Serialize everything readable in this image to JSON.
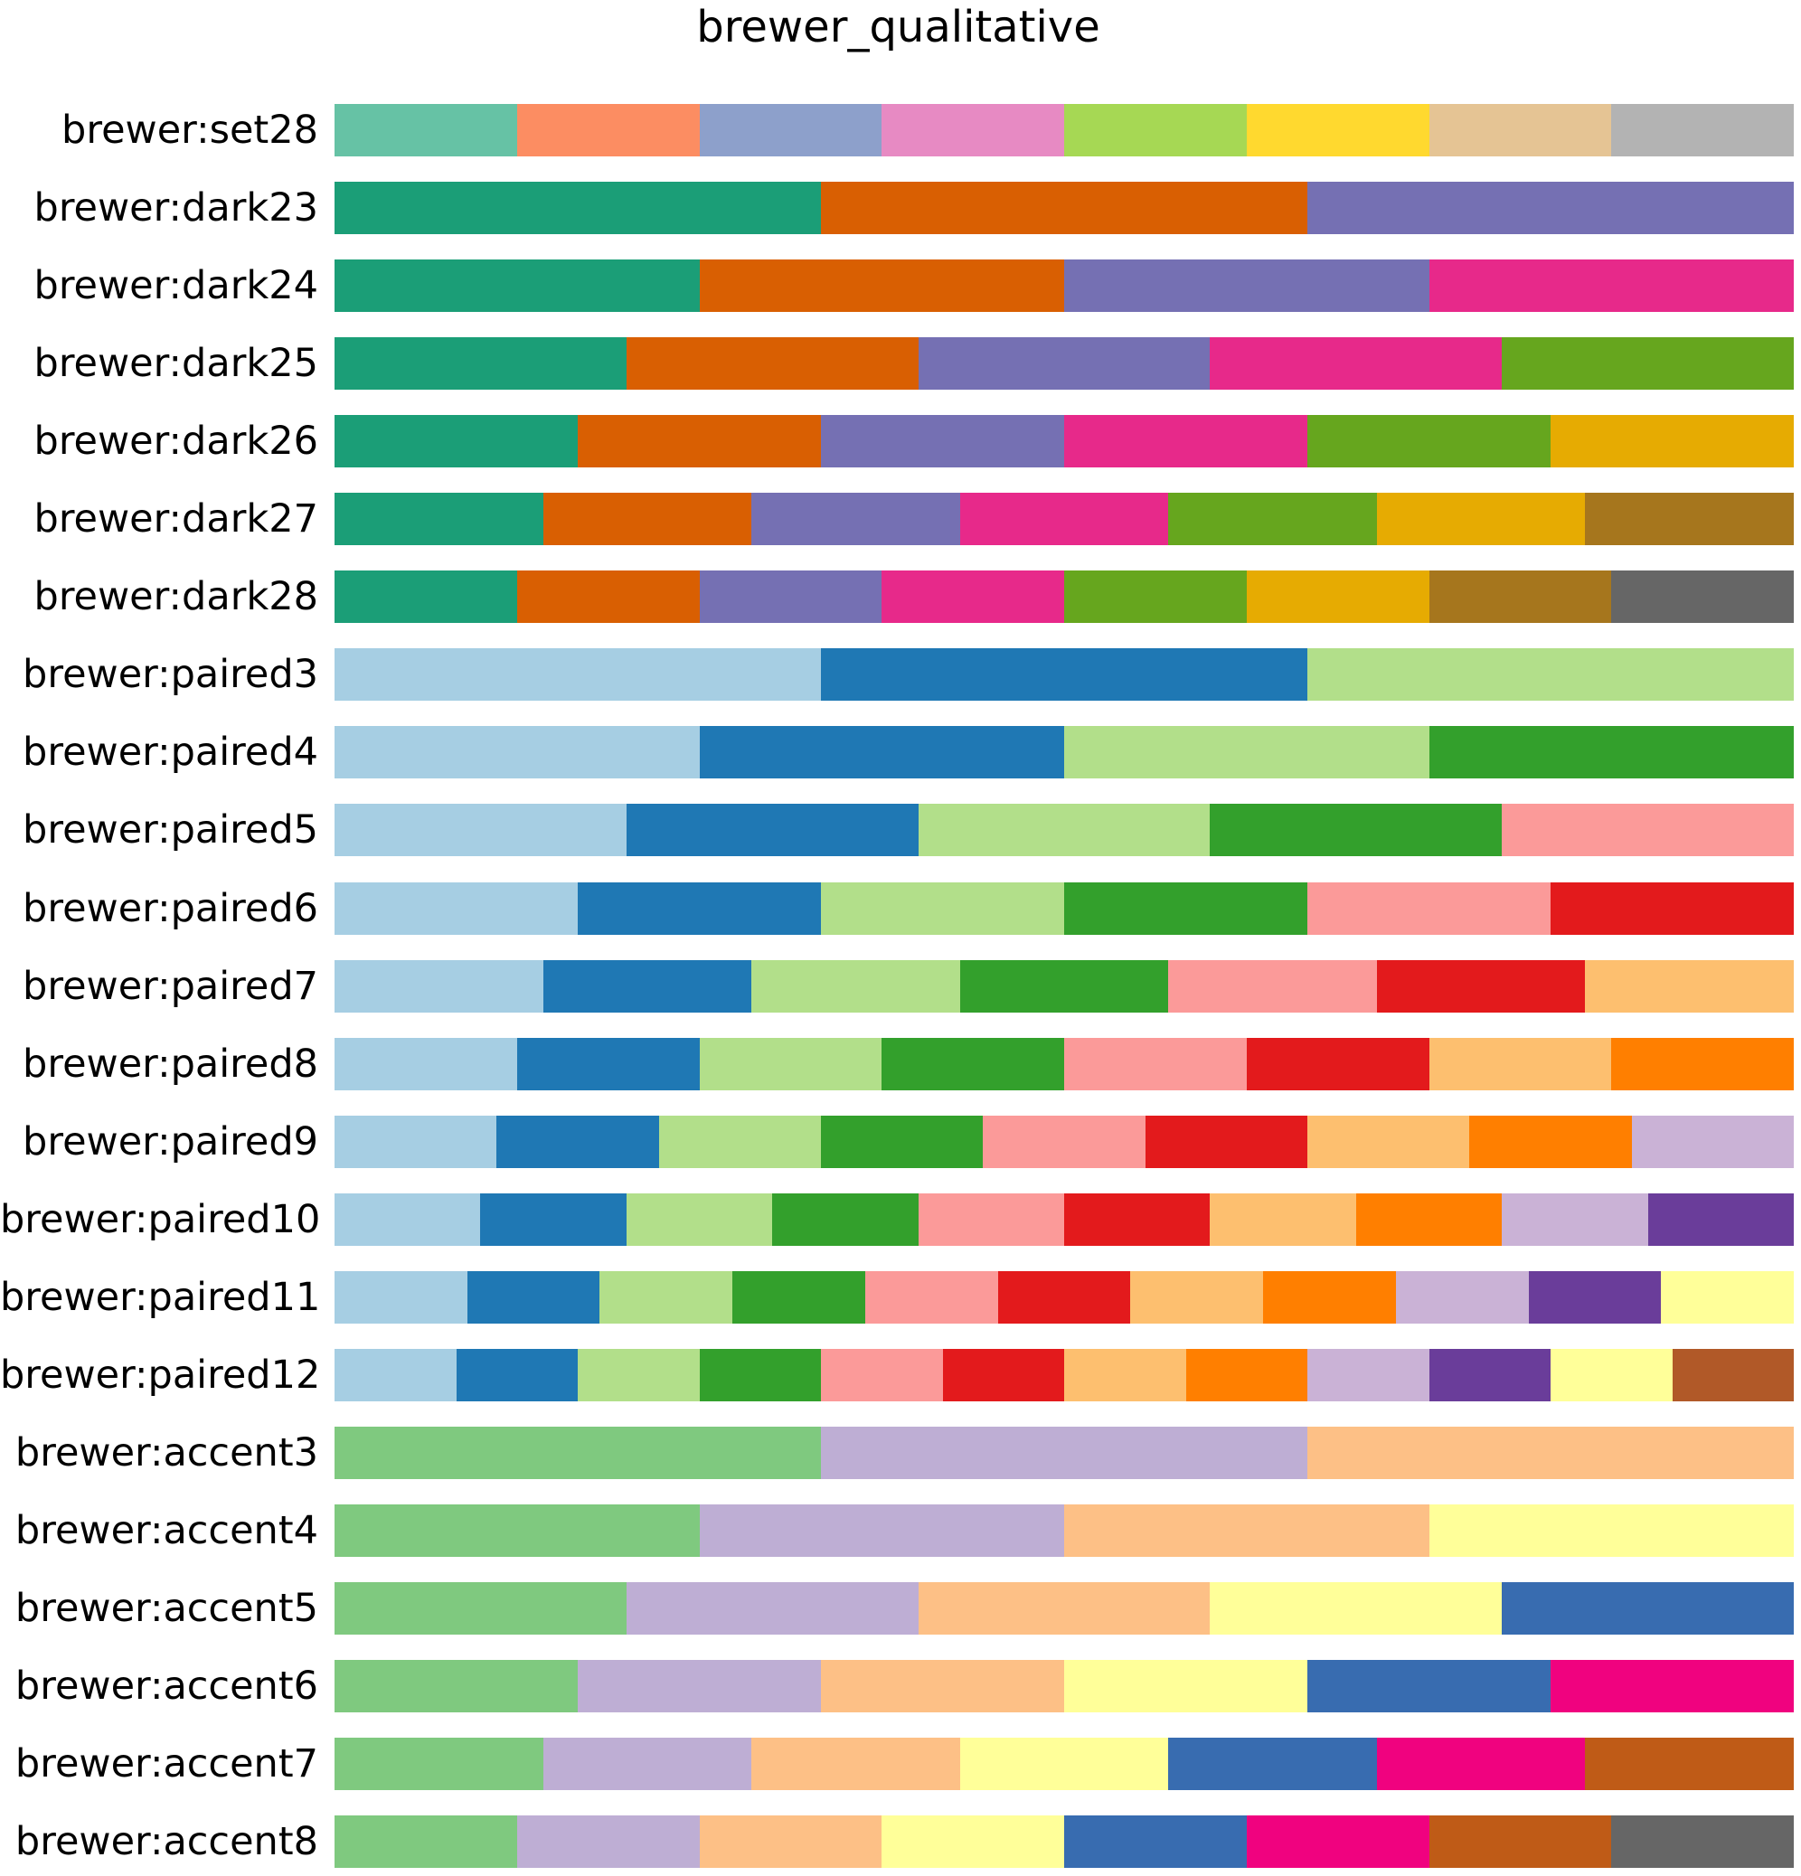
{
  "chart_data": {
    "type": "heatmap",
    "title": "brewer_qualitative",
    "xlabel": "",
    "ylabel": "",
    "grid": false,
    "palettes": [
      {
        "name": "brewer:set28",
        "colors": [
          "#66c2a5",
          "#fc8d62",
          "#8da0cb",
          "#e78ac3",
          "#a6d854",
          "#ffd92f",
          "#e5c494",
          "#b3b3b3"
        ]
      },
      {
        "name": "brewer:dark23",
        "colors": [
          "#1b9e77",
          "#d95f02",
          "#7570b3"
        ]
      },
      {
        "name": "brewer:dark24",
        "colors": [
          "#1b9e77",
          "#d95f02",
          "#7570b3",
          "#e7298a"
        ]
      },
      {
        "name": "brewer:dark25",
        "colors": [
          "#1b9e77",
          "#d95f02",
          "#7570b3",
          "#e7298a",
          "#66a61e"
        ]
      },
      {
        "name": "brewer:dark26",
        "colors": [
          "#1b9e77",
          "#d95f02",
          "#7570b3",
          "#e7298a",
          "#66a61e",
          "#e6ab02"
        ]
      },
      {
        "name": "brewer:dark27",
        "colors": [
          "#1b9e77",
          "#d95f02",
          "#7570b3",
          "#e7298a",
          "#66a61e",
          "#e6ab02",
          "#a6761d"
        ]
      },
      {
        "name": "brewer:dark28",
        "colors": [
          "#1b9e77",
          "#d95f02",
          "#7570b3",
          "#e7298a",
          "#66a61e",
          "#e6ab02",
          "#a6761d",
          "#666666"
        ]
      },
      {
        "name": "brewer:paired3",
        "colors": [
          "#a6cee3",
          "#1f78b4",
          "#b2df8a"
        ]
      },
      {
        "name": "brewer:paired4",
        "colors": [
          "#a6cee3",
          "#1f78b4",
          "#b2df8a",
          "#33a02c"
        ]
      },
      {
        "name": "brewer:paired5",
        "colors": [
          "#a6cee3",
          "#1f78b4",
          "#b2df8a",
          "#33a02c",
          "#fb9a99"
        ]
      },
      {
        "name": "brewer:paired6",
        "colors": [
          "#a6cee3",
          "#1f78b4",
          "#b2df8a",
          "#33a02c",
          "#fb9a99",
          "#e31a1c"
        ]
      },
      {
        "name": "brewer:paired7",
        "colors": [
          "#a6cee3",
          "#1f78b4",
          "#b2df8a",
          "#33a02c",
          "#fb9a99",
          "#e31a1c",
          "#fdbf6f"
        ]
      },
      {
        "name": "brewer:paired8",
        "colors": [
          "#a6cee3",
          "#1f78b4",
          "#b2df8a",
          "#33a02c",
          "#fb9a99",
          "#e31a1c",
          "#fdbf6f",
          "#ff7f00"
        ]
      },
      {
        "name": "brewer:paired9",
        "colors": [
          "#a6cee3",
          "#1f78b4",
          "#b2df8a",
          "#33a02c",
          "#fb9a99",
          "#e31a1c",
          "#fdbf6f",
          "#ff7f00",
          "#cab2d6"
        ]
      },
      {
        "name": "brewer:paired10",
        "colors": [
          "#a6cee3",
          "#1f78b4",
          "#b2df8a",
          "#33a02c",
          "#fb9a99",
          "#e31a1c",
          "#fdbf6f",
          "#ff7f00",
          "#cab2d6",
          "#6a3d9a"
        ]
      },
      {
        "name": "brewer:paired11",
        "colors": [
          "#a6cee3",
          "#1f78b4",
          "#b2df8a",
          "#33a02c",
          "#fb9a99",
          "#e31a1c",
          "#fdbf6f",
          "#ff7f00",
          "#cab2d6",
          "#6a3d9a",
          "#ffff99"
        ]
      },
      {
        "name": "brewer:paired12",
        "colors": [
          "#a6cee3",
          "#1f78b4",
          "#b2df8a",
          "#33a02c",
          "#fb9a99",
          "#e31a1c",
          "#fdbf6f",
          "#ff7f00",
          "#cab2d6",
          "#6a3d9a",
          "#ffff99",
          "#b15928"
        ]
      },
      {
        "name": "brewer:accent3",
        "colors": [
          "#7fc97f",
          "#beaed4",
          "#fdc086"
        ]
      },
      {
        "name": "brewer:accent4",
        "colors": [
          "#7fc97f",
          "#beaed4",
          "#fdc086",
          "#ffff99"
        ]
      },
      {
        "name": "brewer:accent5",
        "colors": [
          "#7fc97f",
          "#beaed4",
          "#fdc086",
          "#ffff99",
          "#386cb0"
        ]
      },
      {
        "name": "brewer:accent6",
        "colors": [
          "#7fc97f",
          "#beaed4",
          "#fdc086",
          "#ffff99",
          "#386cb0",
          "#f0027f"
        ]
      },
      {
        "name": "brewer:accent7",
        "colors": [
          "#7fc97f",
          "#beaed4",
          "#fdc086",
          "#ffff99",
          "#386cb0",
          "#f0027f",
          "#bf5b17"
        ]
      },
      {
        "name": "brewer:accent8",
        "colors": [
          "#7fc97f",
          "#beaed4",
          "#fdc086",
          "#ffff99",
          "#386cb0",
          "#f0027f",
          "#bf5b17",
          "#666666"
        ]
      }
    ]
  }
}
